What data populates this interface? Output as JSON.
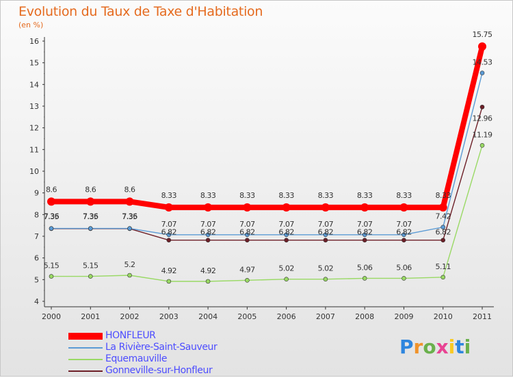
{
  "title": "Evolution du Taux de Taxe d'Habitation",
  "subtitle": "(en %)",
  "logo_text": "Proxiti",
  "chart_data": {
    "type": "line",
    "title": "Evolution du Taux de Taxe d'Habitation",
    "ylabel": "(en %)",
    "xlabel": "",
    "ylim": [
      4,
      16
    ],
    "yticks": [
      "4",
      "5",
      "6",
      "7",
      "8",
      "9",
      "10",
      "11",
      "12",
      "13",
      "14",
      "15",
      "16"
    ],
    "x": [
      "2000",
      "2001",
      "2002",
      "2003",
      "2004",
      "2005",
      "2006",
      "2007",
      "2008",
      "2009",
      "2010",
      "2011"
    ],
    "grid": false,
    "legend_position": "bottom-left",
    "series": [
      {
        "name": "HONFLEUR",
        "color": "#ff0000",
        "values": [
          8.6,
          8.6,
          8.6,
          8.33,
          8.33,
          8.33,
          8.33,
          8.33,
          8.33,
          8.33,
          8.33,
          15.75
        ],
        "labels": [
          "8.6",
          "8.6",
          "8.6",
          "8.33",
          "8.33",
          "8.33",
          "8.33",
          "8.33",
          "8.33",
          "8.33",
          "8.33",
          "15.75"
        ]
      },
      {
        "name": "La Rivière-Saint-Sauveur",
        "color": "#5b9bd5",
        "values": [
          7.36,
          7.36,
          7.36,
          7.07,
          7.07,
          7.07,
          7.07,
          7.07,
          7.07,
          7.07,
          7.42,
          14.53
        ],
        "labels": [
          "7.36",
          "7.36",
          "7.36",
          "7.07",
          "7.07",
          "7.07",
          "7.07",
          "7.07",
          "7.07",
          "7.07",
          "7.42",
          "14.53"
        ]
      },
      {
        "name": "Equemauville",
        "color": "#99d964",
        "values": [
          5.15,
          5.15,
          5.2,
          4.92,
          4.92,
          4.97,
          5.02,
          5.02,
          5.06,
          5.06,
          5.11,
          11.19
        ],
        "labels": [
          "5.15",
          "5.15",
          "5.2",
          "4.92",
          "4.92",
          "4.97",
          "5.02",
          "5.02",
          "5.06",
          "5.06",
          "5.11",
          "11.19"
        ]
      },
      {
        "name": "Gonneville-sur-Honfleur",
        "color": "#6d1f27",
        "values": [
          7.35,
          7.35,
          7.35,
          6.82,
          6.82,
          6.82,
          6.82,
          6.82,
          6.82,
          6.82,
          6.82,
          12.96
        ],
        "labels": [
          "7.35",
          "7.35",
          "7.35",
          "6.82",
          "6.82",
          "6.82",
          "6.82",
          "6.82",
          "6.82",
          "6.82",
          "6.82",
          "12.96"
        ]
      }
    ]
  },
  "legend": {
    "items": [
      {
        "label": "HONFLEUR",
        "color": "#ff0000",
        "text_color": "#4d4dff"
      },
      {
        "label": "La Rivière-Saint-Sauveur",
        "color": "#5b9bd5",
        "text_color": "#4d4dff"
      },
      {
        "label": "Equemauville",
        "color": "#99d964",
        "text_color": "#4d4dff"
      },
      {
        "label": "Gonneville-sur-Honfleur",
        "color": "#6d1f27",
        "text_color": "#4d4dff"
      }
    ]
  }
}
